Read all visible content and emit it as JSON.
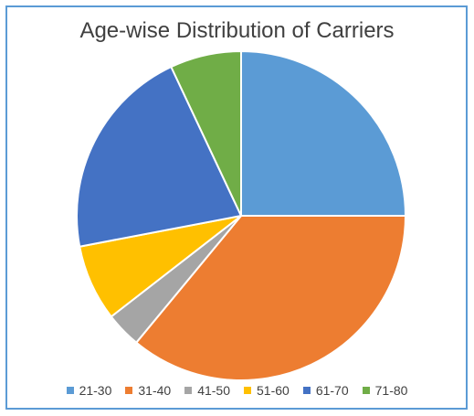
{
  "chart_data": {
    "type": "pie",
    "title": "Age-wise Distribution of Carriers",
    "categories": [
      "21-30",
      "31-40",
      "41-50",
      "51-60",
      "61-70",
      "71-80"
    ],
    "values": [
      25,
      36,
      3.5,
      7.5,
      21,
      7
    ],
    "colors": [
      "#5b9bd5",
      "#ed7d31",
      "#a5a5a5",
      "#ffc000",
      "#4472c4",
      "#70ad47"
    ],
    "legend": "bottom"
  }
}
